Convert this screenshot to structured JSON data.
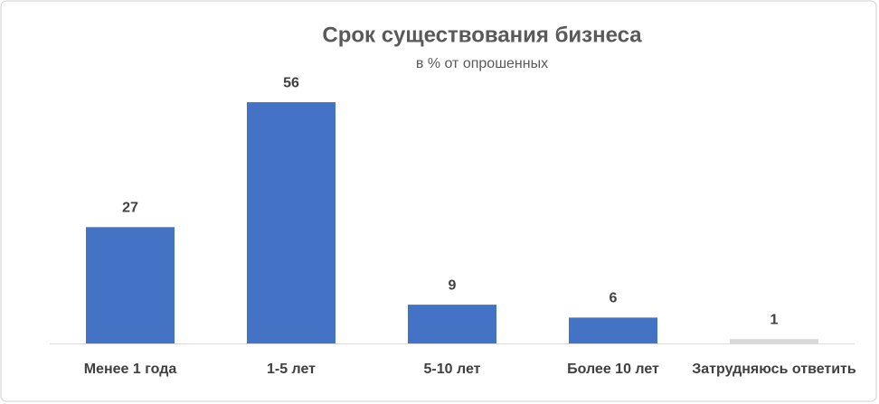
{
  "chart_data": {
    "type": "bar",
    "title": "Срок существования бизнеса",
    "subtitle": "в % от опрошенных",
    "categories": [
      "Менее 1 года",
      "1-5 лет",
      "5-10 лет",
      "Более 10 лет",
      "Затрудняюсь ответить"
    ],
    "values": [
      27,
      56,
      9,
      6,
      1
    ],
    "colors": [
      "#4472c4",
      "#4472c4",
      "#4472c4",
      "#4472c4",
      "#d9d9d9"
    ],
    "ylim": [
      0,
      60
    ]
  }
}
